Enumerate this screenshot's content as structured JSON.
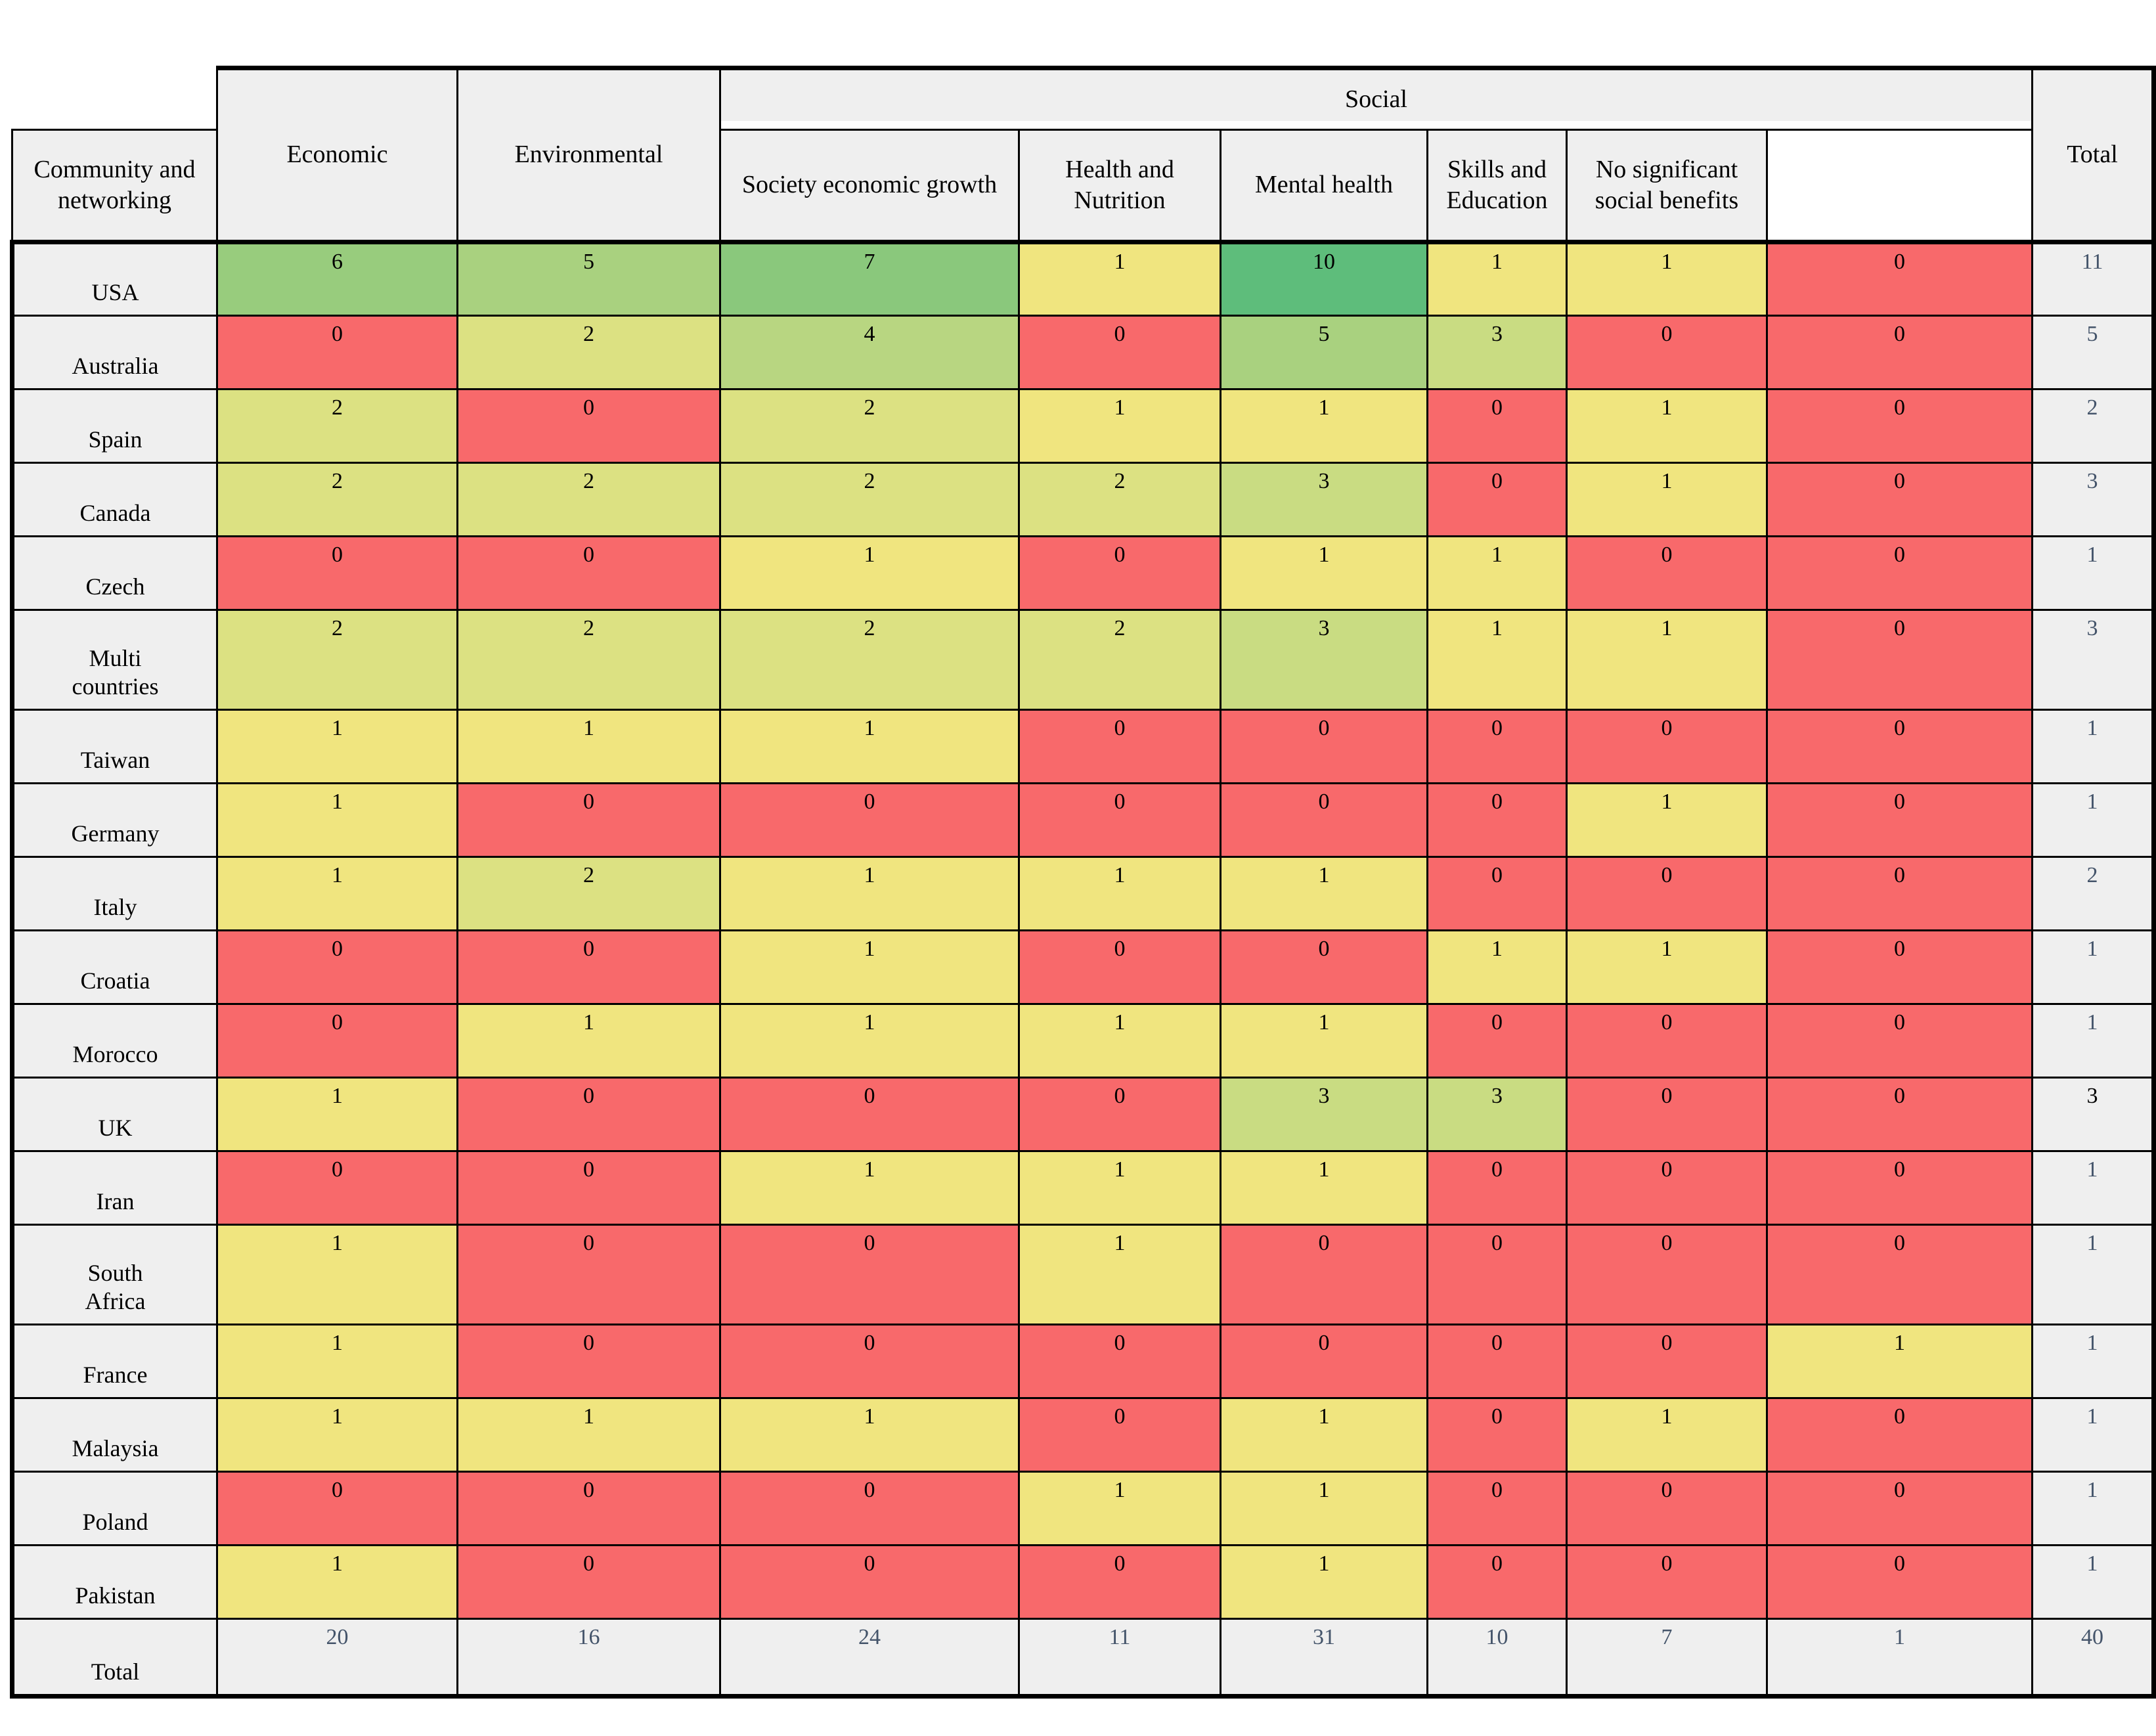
{
  "table": {
    "header": {
      "corner": "",
      "economic": "Economic",
      "environmental": "Environmental",
      "social_group": "Social",
      "social_columns": [
        "Community and networking",
        "Society economic growth",
        "Health and Nutrition",
        "Mental health",
        "Skills and Education",
        "No significant social benefits"
      ],
      "total": "Total"
    },
    "rows": [
      {
        "label": "USA",
        "values": [
          6,
          5,
          7,
          1,
          10,
          1,
          1,
          0
        ],
        "total": 11
      },
      {
        "label": "Australia",
        "values": [
          0,
          2,
          4,
          0,
          5,
          3,
          0,
          0
        ],
        "total": 5
      },
      {
        "label": "Spain",
        "values": [
          2,
          0,
          2,
          1,
          1,
          0,
          1,
          0
        ],
        "total": 2
      },
      {
        "label": "Canada",
        "values": [
          2,
          2,
          2,
          2,
          3,
          0,
          1,
          0
        ],
        "total": 3
      },
      {
        "label": "Czech",
        "values": [
          0,
          0,
          1,
          0,
          1,
          1,
          0,
          0
        ],
        "total": 1
      },
      {
        "label": "Multi\ncountries",
        "values": [
          2,
          2,
          2,
          2,
          3,
          1,
          1,
          0
        ],
        "total": 3,
        "tall": true
      },
      {
        "label": "Taiwan",
        "values": [
          1,
          1,
          1,
          0,
          0,
          0,
          0,
          0
        ],
        "total": 1
      },
      {
        "label": "Germany",
        "values": [
          1,
          0,
          0,
          0,
          0,
          0,
          1,
          0
        ],
        "total": 1
      },
      {
        "label": "Italy",
        "values": [
          1,
          2,
          1,
          1,
          1,
          0,
          0,
          0
        ],
        "total": 2
      },
      {
        "label": "Croatia",
        "values": [
          0,
          0,
          1,
          0,
          0,
          1,
          1,
          0
        ],
        "total": 1
      },
      {
        "label": "Morocco",
        "values": [
          0,
          1,
          1,
          1,
          1,
          0,
          0,
          0
        ],
        "total": 1
      },
      {
        "label": "UK",
        "values": [
          1,
          0,
          0,
          0,
          3,
          3,
          0,
          0
        ],
        "total": 3,
        "total_color": "#000000"
      },
      {
        "label": "Iran",
        "values": [
          0,
          0,
          1,
          1,
          1,
          0,
          0,
          0
        ],
        "total": 1
      },
      {
        "label": "South\nAfrica",
        "values": [
          1,
          0,
          0,
          1,
          0,
          0,
          0,
          0
        ],
        "total": 1,
        "tall": true
      },
      {
        "label": "France",
        "values": [
          1,
          0,
          0,
          0,
          0,
          0,
          0,
          1
        ],
        "total": 1
      },
      {
        "label": "Malaysia",
        "values": [
          1,
          1,
          1,
          0,
          1,
          0,
          1,
          0
        ],
        "total": 1
      },
      {
        "label": "Poland",
        "values": [
          0,
          0,
          0,
          1,
          1,
          0,
          0,
          0
        ],
        "total": 1
      },
      {
        "label": "Pakistan",
        "values": [
          1,
          0,
          0,
          0,
          1,
          0,
          0,
          0
        ],
        "total": 1
      }
    ],
    "totals_row": {
      "label": "Total",
      "values": [
        20,
        16,
        24,
        11,
        31,
        10,
        7,
        1
      ],
      "total": 40
    }
  },
  "colors": {
    "page_bg": "#ffffff",
    "header_bg": "#efefef",
    "border": "#000000",
    "cell_text": "#000000",
    "total_text": "#44546a",
    "value_scale": {
      "0": "#f8696b",
      "1": "#f0e57f",
      "2": "#dce182",
      "3": "#c9dc82",
      "4": "#b8d681",
      "5": "#a9d17f",
      "6": "#98cc7d",
      "7": "#8ac87c",
      "10": "#5ebd7b"
    }
  },
  "chart_data": {
    "type": "heatmap",
    "title": "",
    "row_labels": [
      "USA",
      "Australia",
      "Spain",
      "Canada",
      "Czech",
      "Multi countries",
      "Taiwan",
      "Germany",
      "Italy",
      "Croatia",
      "Morocco",
      "UK",
      "Iran",
      "South Africa",
      "France",
      "Malaysia",
      "Poland",
      "Pakistan"
    ],
    "column_labels": [
      "Economic",
      "Environmental",
      "Community and networking",
      "Society economic growth",
      "Health and Nutrition",
      "Mental health",
      "Skills and Education",
      "No significant social benefits"
    ],
    "column_groups": {
      "Social": [
        "Community and networking",
        "Society economic growth",
        "Health and Nutrition",
        "Mental health",
        "Skills and Education",
        "No significant social benefits"
      ]
    },
    "matrix": [
      [
        6,
        5,
        7,
        1,
        10,
        1,
        1,
        0
      ],
      [
        0,
        2,
        4,
        0,
        5,
        3,
        0,
        0
      ],
      [
        2,
        0,
        2,
        1,
        1,
        0,
        1,
        0
      ],
      [
        2,
        2,
        2,
        2,
        3,
        0,
        1,
        0
      ],
      [
        0,
        0,
        1,
        0,
        1,
        1,
        0,
        0
      ],
      [
        2,
        2,
        2,
        2,
        3,
        1,
        1,
        0
      ],
      [
        1,
        1,
        1,
        0,
        0,
        0,
        0,
        0
      ],
      [
        1,
        0,
        0,
        0,
        0,
        0,
        1,
        0
      ],
      [
        1,
        2,
        1,
        1,
        1,
        0,
        0,
        0
      ],
      [
        0,
        0,
        1,
        0,
        0,
        1,
        1,
        0
      ],
      [
        0,
        1,
        1,
        1,
        1,
        0,
        0,
        0
      ],
      [
        1,
        0,
        0,
        0,
        3,
        3,
        0,
        0
      ],
      [
        0,
        0,
        1,
        1,
        1,
        0,
        0,
        0
      ],
      [
        1,
        0,
        0,
        1,
        0,
        0,
        0,
        0
      ],
      [
        1,
        0,
        0,
        0,
        0,
        0,
        0,
        1
      ],
      [
        1,
        1,
        1,
        0,
        1,
        0,
        1,
        0
      ],
      [
        0,
        0,
        0,
        1,
        1,
        0,
        0,
        0
      ],
      [
        1,
        0,
        0,
        0,
        1,
        0,
        0,
        0
      ]
    ],
    "row_totals": [
      11,
      5,
      2,
      3,
      1,
      3,
      1,
      1,
      2,
      1,
      1,
      3,
      1,
      1,
      1,
      1,
      1,
      1
    ],
    "column_totals": [
      20,
      16,
      24,
      11,
      31,
      10,
      7,
      1
    ],
    "grand_total": 40,
    "color_scale": "red(0) to yellow(1) to green(10)"
  }
}
